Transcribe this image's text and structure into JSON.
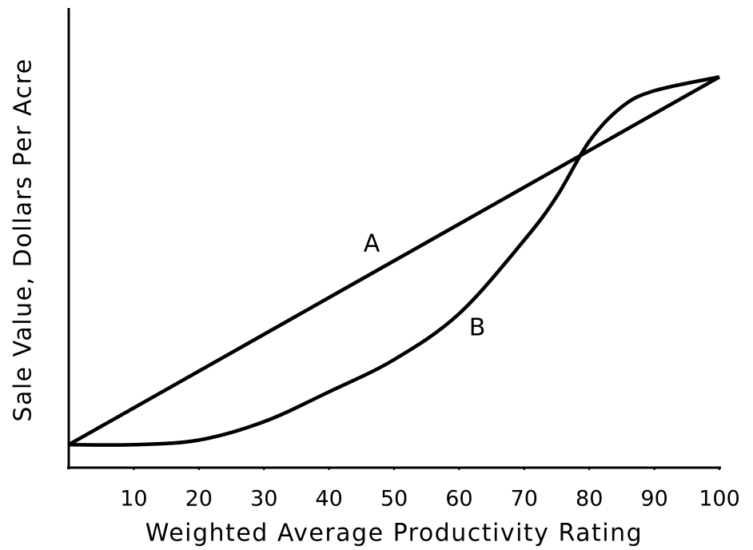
{
  "chart_data": {
    "type": "line",
    "x_label": "Weighted Average Productivity Rating",
    "y_label": "Sale Value, Dollars Per Acre",
    "x": [
      0,
      10,
      20,
      30,
      40,
      50,
      60,
      70,
      75,
      80,
      85,
      90,
      100
    ],
    "series": [
      {
        "name": "A",
        "color": "#000000",
        "values": [
          5,
          13,
          21,
          29,
          37,
          45,
          53,
          61,
          65,
          69,
          73,
          77,
          85
        ]
      },
      {
        "name": "B",
        "color": "#000000",
        "values": [
          5,
          5,
          6,
          10,
          16.5,
          23.5,
          33.5,
          49.5,
          59,
          71,
          78.5,
          82,
          85
        ]
      }
    ],
    "xlim": [
      0,
      100
    ],
    "ylim": [
      0,
      100
    ],
    "xticks": [
      10,
      20,
      30,
      40,
      50,
      60,
      70,
      80,
      90,
      100
    ],
    "grid": false
  }
}
